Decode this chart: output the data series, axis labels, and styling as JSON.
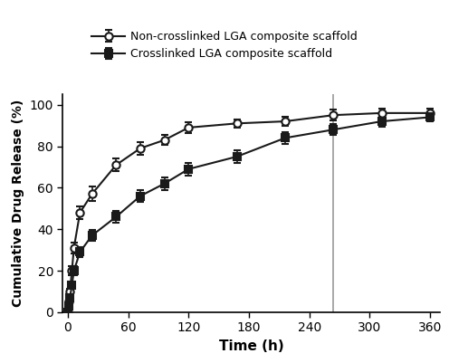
{
  "non_crosslinked": {
    "label": "Non-crosslinked LGA composite scaffold",
    "x": [
      0,
      1,
      2,
      4,
      6,
      12,
      24,
      48,
      72,
      96,
      120,
      168,
      216,
      264,
      312,
      360
    ],
    "y": [
      0,
      5,
      10,
      20,
      31,
      48,
      57,
      71,
      79,
      83,
      89,
      91,
      92,
      95,
      96,
      96
    ],
    "yerr": [
      0,
      1.5,
      1.5,
      2,
      2.5,
      3,
      3.5,
      3,
      3,
      2.5,
      2.5,
      2,
      2,
      2.5,
      2,
      2
    ],
    "marker": "o",
    "color": "#1a1a1a"
  },
  "crosslinked": {
    "label": "Crosslinked LGA composite scaffold",
    "x": [
      0,
      1,
      2,
      4,
      6,
      12,
      24,
      48,
      72,
      96,
      120,
      168,
      216,
      264,
      312,
      360
    ],
    "y": [
      0,
      3,
      7,
      13,
      20,
      29,
      37,
      46,
      56,
      62,
      69,
      75,
      84,
      88,
      92,
      94
    ],
    "yerr": [
      0,
      1,
      1,
      1.5,
      2,
      2.5,
      2.5,
      3,
      3,
      3,
      3,
      3,
      3,
      2.5,
      2.5,
      2
    ],
    "marker": "s",
    "color": "#1a1a1a"
  },
  "vline_x": 264,
  "xlabel": "Time (h)",
  "ylabel": "Cumulative Drug Release (%)",
  "xlim": [
    -5,
    370
  ],
  "ylim": [
    0,
    105
  ],
  "xticks": [
    0,
    60,
    120,
    180,
    240,
    300,
    360
  ],
  "yticks": [
    0,
    20,
    40,
    60,
    80,
    100
  ],
  "figsize": [
    4.96,
    4.01
  ],
  "dpi": 100,
  "bg_color": "#ffffff"
}
